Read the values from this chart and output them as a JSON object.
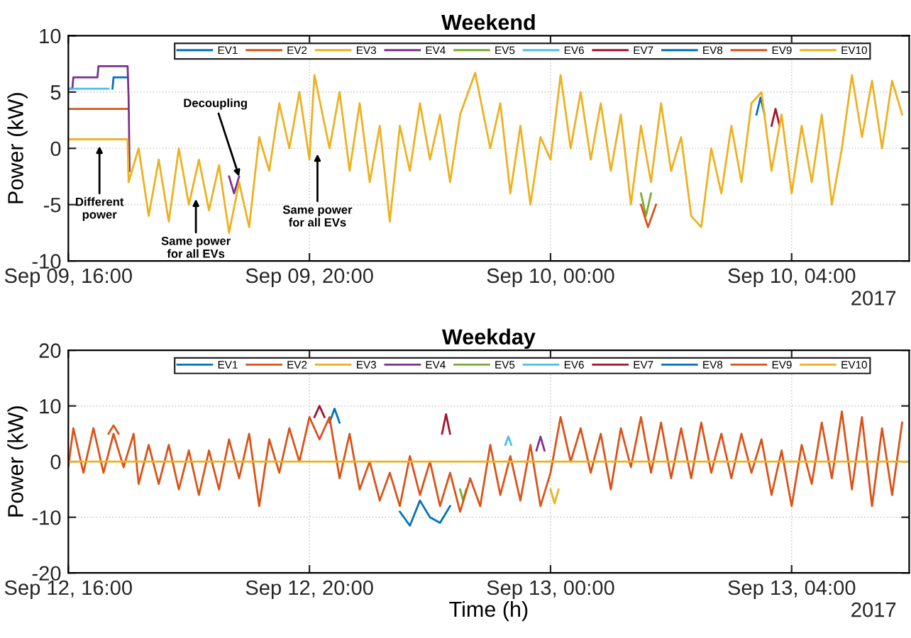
{
  "chart_data": [
    {
      "type": "line",
      "title": "Weekend",
      "ylabel": "Power (kW)",
      "xlim": [
        "2017-09-09T16:00",
        "2017-09-10T05:57"
      ],
      "xticks": [
        {
          "value": "2017-09-09T16:00",
          "label": "Sep 09, 16:00"
        },
        {
          "value": "2017-09-09T20:00",
          "label": "Sep 09, 20:00"
        },
        {
          "value": "2017-09-10T00:00",
          "label": "Sep 10, 00:00"
        },
        {
          "value": "2017-09-10T04:00",
          "label": "Sep 10, 04:00"
        }
      ],
      "ylim": [
        -10,
        10
      ],
      "yticks": [
        -10,
        -5,
        0,
        5,
        10
      ],
      "grid": true,
      "legend": "top",
      "marker": "none",
      "line_style": "solid",
      "annotations": [
        {
          "text": "Different\npower",
          "x": "2017-09-09T16:31",
          "y": 0.2
        },
        {
          "text": "Same power\nfor all EVs",
          "x": "2017-09-09T18:07",
          "y": -4.5
        },
        {
          "text": "Decoupling",
          "x": "2017-09-09T18:50",
          "y": -2.5
        },
        {
          "text": "Same power\nfor all EVs",
          "x": "2017-09-09T20:08",
          "y": -0.5
        },
        "2017"
      ],
      "series": [
        {
          "name": "EV1",
          "color": "#0072bd",
          "x": [
            "2017-09-09T16:44",
            "2017-09-09T16:45",
            "2017-09-09T16:59"
          ],
          "values": [
            5.3,
            6.3,
            6.3
          ]
        },
        {
          "name": "EV2",
          "color": "#d95319",
          "x": [
            "2017-09-09T16:00",
            "2017-09-09T16:59"
          ],
          "values": [
            3.5,
            3.5
          ]
        },
        {
          "name": "EV3",
          "color": "#edb120",
          "x": [
            "2017-09-09T16:00",
            "2017-09-09T16:59"
          ],
          "values": [
            0.8,
            0.8
          ]
        },
        {
          "name": "EV4",
          "color": "#7e2f8e",
          "x": [
            "2017-09-09T16:00",
            "2017-09-09T16:04",
            "2017-09-09T16:05",
            "2017-09-09T16:29",
            "2017-09-09T16:30",
            "2017-09-09T16:59",
            "2017-09-09T17:00",
            "2017-09-09T17:01",
            "2017-09-09T18:30",
            "2017-09-09T18:40",
            "2017-09-09T18:45",
            "2017-09-09T18:50"
          ],
          "values": [
            5.3,
            5.3,
            6.3,
            6.3,
            7.3,
            7.3,
            4.5,
            -2,
            null,
            -2.5,
            -4,
            -2.5
          ]
        },
        {
          "name": "EV5",
          "color": "#77ac30",
          "x": [
            "2017-09-10T01:30",
            "2017-09-10T01:35",
            "2017-09-10T01:40"
          ],
          "values": [
            -4,
            -6,
            -4
          ]
        },
        {
          "name": "EV6",
          "color": "#4dbeee",
          "x": [
            "2017-09-09T16:00",
            "2017-09-09T16:40"
          ],
          "values": [
            5.3,
            5.3
          ]
        },
        {
          "name": "EV7",
          "color": "#a2142f",
          "x": [
            "2017-09-10T03:40",
            "2017-09-10T03:44",
            "2017-09-10T03:48"
          ],
          "values": [
            2,
            3.5,
            2
          ]
        },
        {
          "name": "EV8",
          "color": "#0072bd",
          "x": [
            "2017-09-10T03:25",
            "2017-09-10T03:29",
            "2017-09-10T03:33"
          ],
          "values": [
            3,
            4.5,
            3
          ]
        },
        {
          "name": "EV9",
          "color": "#d95319",
          "x": [
            "2017-09-10T01:30",
            "2017-09-10T01:37",
            "2017-09-10T01:45"
          ],
          "values": [
            -5,
            -7,
            -5
          ]
        },
        {
          "name": "EV10",
          "color": "#edb120",
          "x": [
            "2017-09-09T16:00",
            "2017-09-09T16:59",
            "2017-09-09T17:00",
            "2017-09-09T17:10",
            "2017-09-09T17:20",
            "2017-09-09T17:30",
            "2017-09-09T17:40",
            "2017-09-09T17:50",
            "2017-09-09T18:00",
            "2017-09-09T18:10",
            "2017-09-09T18:20",
            "2017-09-09T18:30",
            "2017-09-09T18:40",
            "2017-09-09T18:50",
            "2017-09-09T19:00",
            "2017-09-09T19:10",
            "2017-09-09T19:20",
            "2017-09-09T19:30",
            "2017-09-09T19:40",
            "2017-09-09T19:50",
            "2017-09-09T20:00",
            "2017-09-09T20:05",
            "2017-09-09T20:20",
            "2017-09-09T20:30",
            "2017-09-09T20:40",
            "2017-09-09T20:50",
            "2017-09-09T21:00",
            "2017-09-09T21:10",
            "2017-09-09T21:20",
            "2017-09-09T21:30",
            "2017-09-09T21:40",
            "2017-09-09T21:50",
            "2017-09-09T22:00",
            "2017-09-09T22:10",
            "2017-09-09T22:20",
            "2017-09-09T22:30",
            "2017-09-09T22:45",
            "2017-09-09T23:00",
            "2017-09-09T23:10",
            "2017-09-09T23:20",
            "2017-09-09T23:30",
            "2017-09-09T23:40",
            "2017-09-09T23:50",
            "2017-09-10T00:00",
            "2017-09-10T00:10",
            "2017-09-10T00:20",
            "2017-09-10T00:30",
            "2017-09-10T00:40",
            "2017-09-10T00:50",
            "2017-09-10T01:00",
            "2017-09-10T01:10",
            "2017-09-10T01:20",
            "2017-09-10T01:30",
            "2017-09-10T01:40",
            "2017-09-10T01:50",
            "2017-09-10T02:00",
            "2017-09-10T02:10",
            "2017-09-10T02:20",
            "2017-09-10T02:30",
            "2017-09-10T02:40",
            "2017-09-10T02:50",
            "2017-09-10T03:00",
            "2017-09-10T03:10",
            "2017-09-10T03:20",
            "2017-09-10T03:30",
            "2017-09-10T03:40",
            "2017-09-10T03:50",
            "2017-09-10T04:00",
            "2017-09-10T04:10",
            "2017-09-10T04:20",
            "2017-09-10T04:30",
            "2017-09-10T04:40",
            "2017-09-10T04:50",
            "2017-09-10T05:00",
            "2017-09-10T05:10",
            "2017-09-10T05:20",
            "2017-09-10T05:30",
            "2017-09-10T05:40",
            "2017-09-10T05:50"
          ],
          "values": [
            0.8,
            0.8,
            -3,
            0,
            -6,
            -1,
            -6.5,
            0,
            -5,
            -1,
            -5.5,
            -1.5,
            -7.5,
            -3,
            -7,
            1,
            -2,
            4,
            0,
            5,
            -1,
            6.5,
            0,
            5,
            -2,
            4,
            -3,
            2,
            -6.5,
            2,
            -2,
            4,
            -1,
            3,
            -3,
            3,
            6.7,
            0,
            4,
            -4,
            2,
            -5,
            1,
            -1,
            6.5,
            0,
            5,
            -1,
            4,
            -2,
            3,
            -5,
            2,
            -3,
            4,
            -2,
            1,
            -6,
            -7,
            0,
            -4,
            2,
            -3,
            4,
            5,
            -2,
            3,
            -4,
            2,
            -3,
            3,
            -5,
            0,
            6.5,
            1,
            6,
            0,
            6,
            3
          ]
        }
      ]
    },
    {
      "type": "line",
      "title": "Weekday",
      "ylabel": "Power (kW)",
      "xlabel": "Time (h)",
      "xlim": [
        "2017-09-12T16:00",
        "2017-09-13T05:57"
      ],
      "xticks": [
        {
          "value": "2017-09-12T16:00",
          "label": "Sep 12, 16:00"
        },
        {
          "value": "2017-09-12T20:00",
          "label": "Sep 12, 20:00"
        },
        {
          "value": "2017-09-13T00:00",
          "label": "Sep 13, 00:00"
        },
        {
          "value": "2017-09-13T04:00",
          "label": "Sep 13, 04:00"
        }
      ],
      "ylim": [
        -20,
        20
      ],
      "yticks": [
        -20,
        -10,
        0,
        10,
        20
      ],
      "grid": true,
      "legend": "top",
      "marker": "none",
      "line_style": "solid",
      "annotations": [
        "2017"
      ],
      "series": [
        {
          "name": "EV1",
          "color": "#0072bd",
          "x": [
            "2017-09-12T21:30",
            "2017-09-12T21:40",
            "2017-09-12T21:50",
            "2017-09-12T22:00",
            "2017-09-12T22:10",
            "2017-09-12T22:20"
          ],
          "values": [
            -9,
            -11.5,
            -7,
            -10,
            -11,
            -8
          ]
        },
        {
          "name": "EV2",
          "color": "#d95319",
          "x": [
            "2017-09-12T16:40",
            "2017-09-12T16:45",
            "2017-09-12T16:50"
          ],
          "values": [
            5,
            6.5,
            5
          ]
        },
        {
          "name": "EV3",
          "color": "#edb120",
          "x": [
            "2017-09-13T00:00",
            "2017-09-13T00:04",
            "2017-09-13T00:08"
          ],
          "values": [
            -5,
            -7.5,
            -5
          ]
        },
        {
          "name": "EV4",
          "color": "#7e2f8e",
          "x": [
            "2017-09-12T23:46",
            "2017-09-12T23:50",
            "2017-09-12T23:54"
          ],
          "values": [
            2,
            4.5,
            2
          ]
        },
        {
          "name": "EV5",
          "color": "#77ac30",
          "x": [
            "2017-09-12T22:30",
            "2017-09-12T22:33",
            "2017-09-12T22:36"
          ],
          "values": [
            -5,
            -7,
            -5
          ]
        },
        {
          "name": "EV6",
          "color": "#4dbeee",
          "x": [
            "2017-09-12T23:15",
            "2017-09-12T23:18",
            "2017-09-12T23:21"
          ],
          "values": [
            3,
            4.5,
            3
          ]
        },
        {
          "name": "EV7",
          "color": "#a2142f",
          "x": [
            "2017-09-12T20:05",
            "2017-09-12T20:10",
            "2017-09-12T20:15",
            "2017-09-12T20:16",
            "2017-09-12T22:12",
            "2017-09-12T22:16",
            "2017-09-12T22:20"
          ],
          "values": [
            8,
            10,
            8,
            null,
            5,
            8.5,
            5
          ]
        },
        {
          "name": "EV8",
          "color": "#0072bd",
          "x": [
            "2017-09-12T20:20",
            "2017-09-12T20:25",
            "2017-09-12T20:30"
          ],
          "values": [
            7,
            9.5,
            7
          ]
        },
        {
          "name": "EV9",
          "color": "#d95319",
          "x": [
            "2017-09-12T16:00",
            "2017-09-12T16:05",
            "2017-09-12T16:15",
            "2017-09-12T16:25",
            "2017-09-12T16:35",
            "2017-09-12T16:45",
            "2017-09-12T16:55",
            "2017-09-12T17:05",
            "2017-09-12T17:10",
            "2017-09-12T17:20",
            "2017-09-12T17:30",
            "2017-09-12T17:40",
            "2017-09-12T17:50",
            "2017-09-12T18:00",
            "2017-09-12T18:10",
            "2017-09-12T18:20",
            "2017-09-12T18:30",
            "2017-09-12T18:40",
            "2017-09-12T18:50",
            "2017-09-12T19:00",
            "2017-09-12T19:10",
            "2017-09-12T19:20",
            "2017-09-12T19:30",
            "2017-09-12T19:40",
            "2017-09-12T19:50",
            "2017-09-12T20:00",
            "2017-09-12T20:10",
            "2017-09-12T20:20",
            "2017-09-12T20:30",
            "2017-09-12T20:40",
            "2017-09-12T20:50",
            "2017-09-12T21:00",
            "2017-09-12T21:10",
            "2017-09-12T21:20",
            "2017-09-12T21:30",
            "2017-09-12T21:40",
            "2017-09-12T21:50",
            "2017-09-12T22:00",
            "2017-09-12T22:10",
            "2017-09-12T22:20",
            "2017-09-12T22:30",
            "2017-09-12T22:40",
            "2017-09-12T22:50",
            "2017-09-12T23:00",
            "2017-09-12T23:10",
            "2017-09-12T23:20",
            "2017-09-12T23:30",
            "2017-09-12T23:40",
            "2017-09-12T23:50",
            "2017-09-13T00:00",
            "2017-09-13T00:10",
            "2017-09-13T00:20",
            "2017-09-13T00:30",
            "2017-09-13T00:40",
            "2017-09-13T00:50",
            "2017-09-13T01:00",
            "2017-09-13T01:10",
            "2017-09-13T01:20",
            "2017-09-13T01:30",
            "2017-09-13T01:40",
            "2017-09-13T01:50",
            "2017-09-13T02:00",
            "2017-09-13T02:10",
            "2017-09-13T02:20",
            "2017-09-13T02:30",
            "2017-09-13T02:40",
            "2017-09-13T02:50",
            "2017-09-13T03:00",
            "2017-09-13T03:10",
            "2017-09-13T03:20",
            "2017-09-13T03:30",
            "2017-09-13T03:40",
            "2017-09-13T03:50",
            "2017-09-13T04:00",
            "2017-09-13T04:10",
            "2017-09-13T04:20",
            "2017-09-13T04:30",
            "2017-09-13T04:40",
            "2017-09-13T04:50",
            "2017-09-13T05:00",
            "2017-09-13T05:10",
            "2017-09-13T05:20",
            "2017-09-13T05:30",
            "2017-09-13T05:40",
            "2017-09-13T05:50"
          ],
          "values": [
            -1,
            6,
            -2,
            6,
            -2,
            5,
            -1,
            5,
            -4,
            3,
            -4,
            3,
            -5,
            2,
            -6,
            2,
            -5,
            4,
            -3,
            5,
            -8,
            4,
            -2,
            6,
            0,
            8,
            4,
            8,
            -3,
            5,
            -5,
            0,
            -7,
            -2,
            -8,
            1,
            -6,
            0,
            -8,
            -2,
            -9,
            -3,
            -8,
            3,
            -6,
            1,
            -7,
            3,
            -8,
            -2,
            8,
            0,
            6,
            -2,
            5,
            -5,
            6,
            -1,
            8,
            -2,
            7,
            -3,
            6,
            -3,
            7,
            -2,
            5,
            -3,
            5,
            -2,
            4,
            -6,
            2,
            -8,
            3,
            -4,
            7,
            -3,
            9,
            -5,
            8,
            -8,
            6,
            -6,
            7
          ]
        },
        {
          "name": "EV10",
          "color": "#edb120",
          "x": [
            "2017-09-12T16:00",
            "2017-09-13T05:57"
          ],
          "values": [
            0,
            0
          ]
        }
      ]
    }
  ]
}
